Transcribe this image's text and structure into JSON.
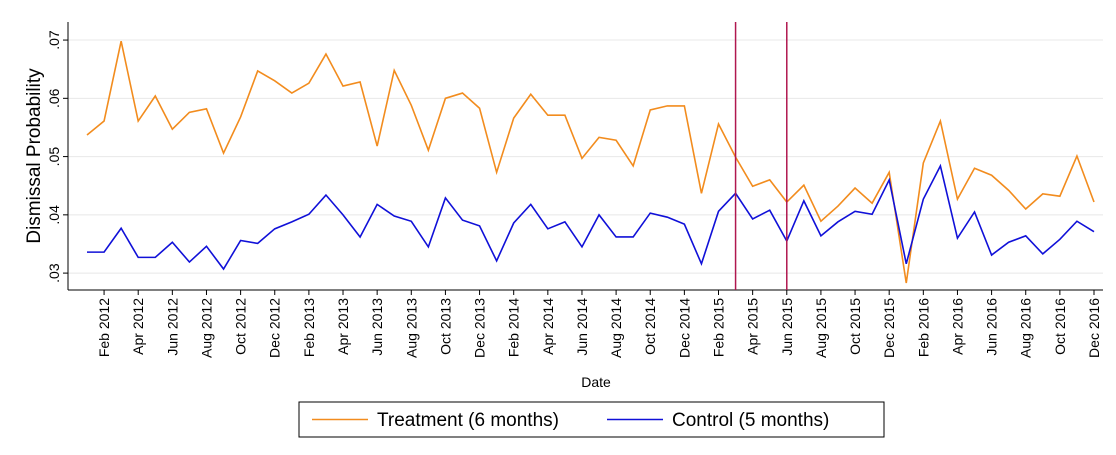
{
  "chart_data": {
    "type": "line",
    "y_label": "Dismissal Probability",
    "x_label": "Date",
    "categories": [
      null,
      "Feb 2012",
      null,
      "Apr 2012",
      null,
      "Jun 2012",
      null,
      "Aug 2012",
      null,
      "Oct 2012",
      null,
      "Dec 2012",
      null,
      "Feb 2013",
      null,
      "Apr 2013",
      null,
      "Jun 2013",
      null,
      "Aug 2013",
      null,
      "Oct 2013",
      null,
      "Dec 2013",
      null,
      "Feb 2014",
      null,
      "Apr 2014",
      null,
      "Jun 2014",
      null,
      "Aug 2014",
      null,
      "Oct 2014",
      null,
      "Dec 2014",
      null,
      "Feb 2015",
      null,
      "Apr 2015",
      null,
      "Jun 2015",
      null,
      "Aug 2015",
      null,
      "Oct 2015",
      null,
      "Dec 2015",
      null,
      "Feb 2016",
      null,
      "Apr 2016",
      null,
      "Jun 2016",
      null,
      "Aug 2016",
      null,
      "Oct 2016",
      null,
      "Dec 2016"
    ],
    "series": [
      {
        "name": "Treatment (6 months)",
        "color": "#f28c1e",
        "values": [
          0.0537,
          0.0561,
          0.0698,
          0.0561,
          0.0604,
          0.0547,
          0.0576,
          0.0582,
          0.0506,
          0.0568,
          0.0647,
          0.063,
          0.0609,
          0.0626,
          0.0676,
          0.0621,
          0.0628,
          0.0518,
          0.0648,
          0.0588,
          0.0511,
          0.06,
          0.0609,
          0.0583,
          0.0473,
          0.0566,
          0.0607,
          0.0571,
          0.0571,
          0.0497,
          0.0533,
          0.0528,
          0.0484,
          0.058,
          0.0587,
          0.0587,
          0.0437,
          0.0556,
          0.0499,
          0.0449,
          0.046,
          0.0422,
          0.0451,
          0.0389,
          0.0415,
          0.0446,
          0.042,
          0.0473,
          0.0283,
          0.0489,
          0.0561,
          0.0427,
          0.048,
          0.0468,
          0.0442,
          0.041,
          0.0436,
          0.0432,
          0.0501,
          0.0422
        ]
      },
      {
        "name": "Control (5 months)",
        "color": "#1010d8",
        "values": [
          0.0336,
          0.0336,
          0.0377,
          0.0327,
          0.0327,
          0.0353,
          0.0319,
          0.0346,
          0.0307,
          0.0356,
          0.0351,
          0.0376,
          0.0388,
          0.0401,
          0.0434,
          0.04,
          0.0362,
          0.0418,
          0.0398,
          0.0389,
          0.0345,
          0.0429,
          0.0391,
          0.0381,
          0.0321,
          0.0386,
          0.0418,
          0.0376,
          0.0388,
          0.0345,
          0.04,
          0.0362,
          0.0362,
          0.0403,
          0.0396,
          0.0384,
          0.0316,
          0.0406,
          0.0437,
          0.0393,
          0.0408,
          0.0355,
          0.0424,
          0.0364,
          0.0388,
          0.0406,
          0.0401,
          0.046,
          0.0316,
          0.0427,
          0.0484,
          0.036,
          0.0405,
          0.0331,
          0.0353,
          0.0364,
          0.0333,
          0.0358,
          0.0389,
          0.0371
        ]
      }
    ],
    "ylim": [
      0.0271,
      0.0731
    ],
    "yticks": [
      {
        "value": 0.03,
        "label": ".03"
      },
      {
        "value": 0.04,
        "label": ".04"
      },
      {
        "value": 0.05,
        "label": ".05"
      },
      {
        "value": 0.06,
        "label": ".06"
      },
      {
        "value": 0.07,
        "label": ".07"
      }
    ],
    "grid": true,
    "vline_indices": [
      38,
      41
    ],
    "vline_color": "#b0174f",
    "legend": "bottom"
  }
}
